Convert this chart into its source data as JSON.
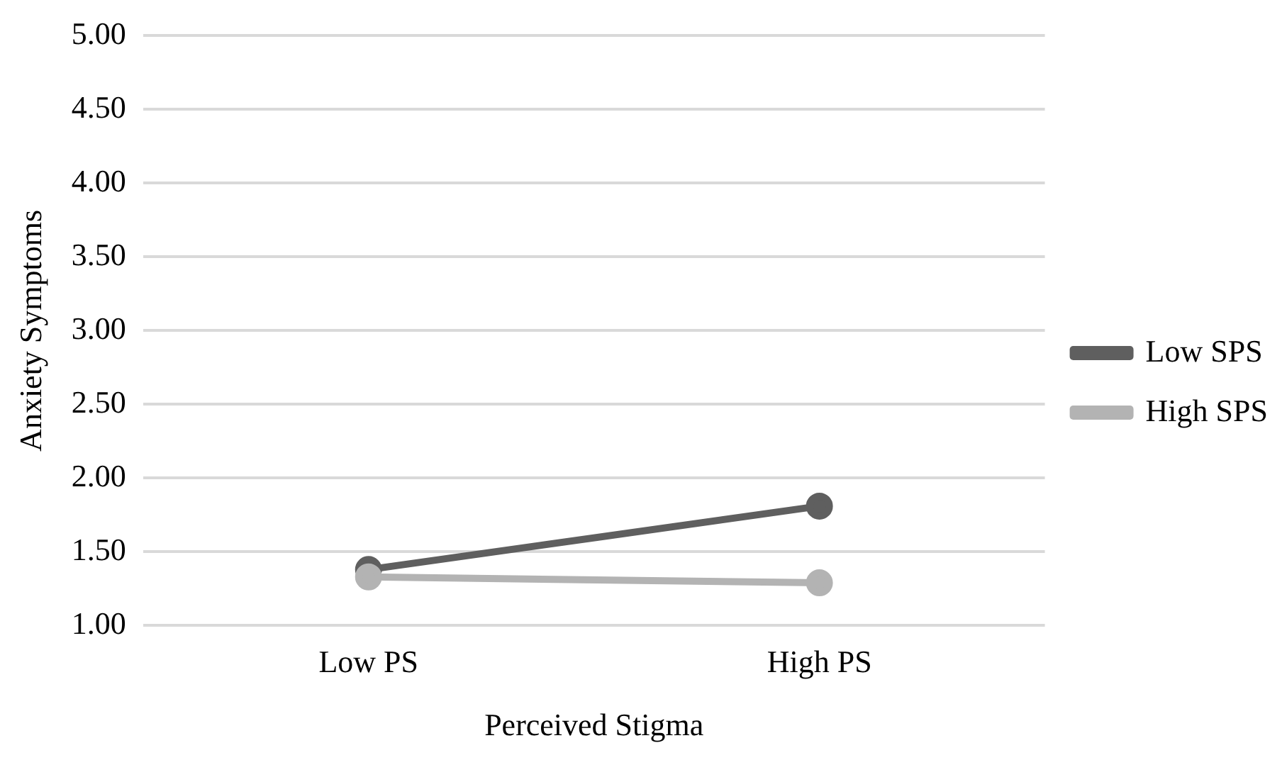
{
  "chart_data": {
    "type": "line",
    "xlabel": "Perceived Stigma",
    "ylabel": "Anxiety Symptoms",
    "categories": [
      "Low PS",
      "High PS"
    ],
    "series": [
      {
        "name": "Low SPS",
        "color": "#5f5f5f",
        "values": [
          1.38,
          1.81
        ]
      },
      {
        "name": "High SPS",
        "color": "#b3b3b3",
        "values": [
          1.33,
          1.29
        ]
      }
    ],
    "ylim": [
      1,
      5
    ],
    "yticks": [
      {
        "value": 1,
        "label": "1.00"
      },
      {
        "value": 1.5,
        "label": "1.50"
      },
      {
        "value": 2,
        "label": "2.00"
      },
      {
        "value": 2.5,
        "label": "2.50"
      },
      {
        "value": 3,
        "label": "3.00"
      },
      {
        "value": 3.5,
        "label": "3.50"
      },
      {
        "value": 4,
        "label": "4.00"
      },
      {
        "value": 4.5,
        "label": "4.50"
      },
      {
        "value": 5,
        "label": "5.00"
      }
    ],
    "grid": "y",
    "legend": "right",
    "marker": "circle",
    "line_style": "solid"
  }
}
